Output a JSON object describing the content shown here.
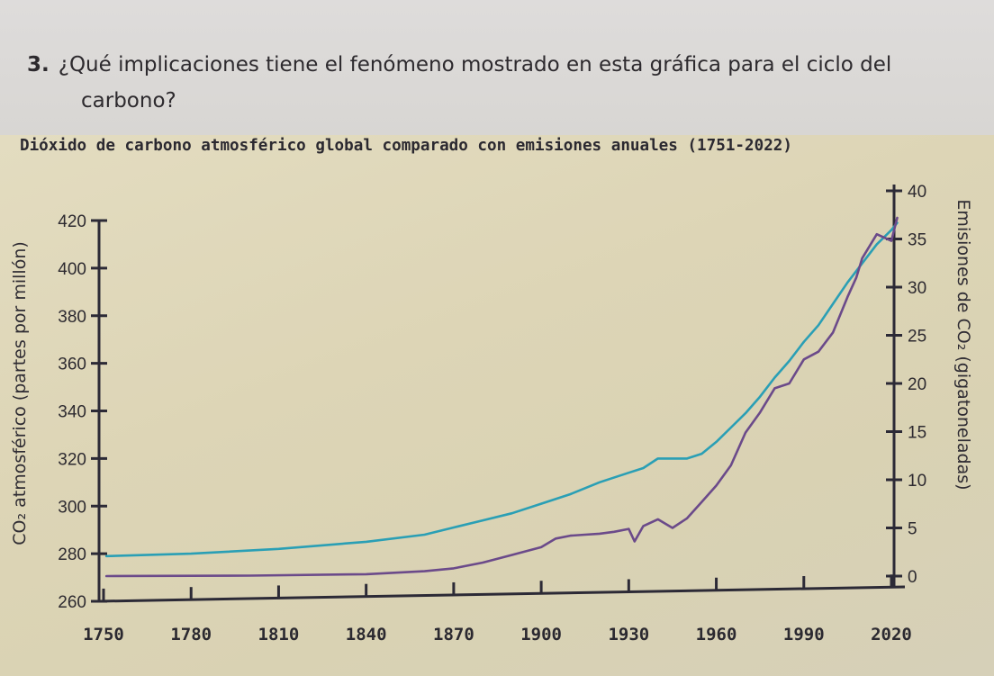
{
  "question": {
    "number": "3.",
    "line1": "¿Qué implicaciones tiene el fenómeno mostrado en esta gráfica para el ciclo del",
    "line2": "carbono?"
  },
  "chart_data": {
    "type": "line",
    "title": "Dióxido de carbono atmosférico global comparado con emisiones anuales (1751-2022)",
    "xlabel": "",
    "ylabel_left": "CO₂ atmosférico (partes por millón)",
    "ylabel_right": "Emisiones de CO₂ (gigatoneladas)",
    "x_ticks": [
      1750,
      1780,
      1810,
      1840,
      1870,
      1900,
      1930,
      1960,
      1990,
      2020
    ],
    "xlim": [
      1750,
      2022
    ],
    "y_left_ticks": [
      260,
      280,
      300,
      320,
      340,
      360,
      380,
      400,
      420
    ],
    "ylim_left": [
      260,
      420
    ],
    "y_right_ticks": [
      0,
      5,
      10,
      15,
      20,
      25,
      30,
      35,
      40
    ],
    "ylim_right": [
      0,
      40
    ],
    "grid": false,
    "legend": "none",
    "series": [
      {
        "axis": "left",
        "color": "#2a9fb5",
        "x": [
          1751,
          1780,
          1810,
          1840,
          1860,
          1870,
          1880,
          1890,
          1900,
          1910,
          1920,
          1930,
          1935,
          1940,
          1945,
          1950,
          1955,
          1960,
          1965,
          1970,
          1975,
          1980,
          1985,
          1990,
          1995,
          2000,
          2005,
          2010,
          2015,
          2020,
          2022
        ],
        "values": [
          279,
          280,
          282,
          285,
          288,
          291,
          294,
          297,
          301,
          305,
          310,
          314,
          316,
          320,
          320,
          320,
          322,
          327,
          333,
          339,
          346,
          354,
          361,
          369,
          376,
          385,
          394,
          402,
          410,
          416,
          419
        ]
      },
      {
        "axis": "right",
        "color": "#6b4a8a",
        "x": [
          1751,
          1800,
          1840,
          1860,
          1870,
          1880,
          1890,
          1900,
          1905,
          1910,
          1915,
          1920,
          1925,
          1930,
          1932,
          1935,
          1940,
          1945,
          1950,
          1955,
          1960,
          1965,
          1970,
          1975,
          1980,
          1985,
          1990,
          1995,
          2000,
          2005,
          2008,
          2010,
          2015,
          2020,
          2022
        ],
        "values": [
          0,
          0.05,
          0.2,
          0.5,
          0.8,
          1.4,
          2.2,
          3.0,
          3.9,
          4.2,
          4.3,
          4.4,
          4.6,
          4.9,
          3.6,
          5.2,
          5.9,
          5.0,
          6.0,
          7.7,
          9.4,
          11.5,
          14.9,
          17.0,
          19.5,
          20.0,
          22.5,
          23.3,
          25.3,
          29.0,
          31.0,
          33.0,
          35.5,
          34.8,
          37.2
        ]
      }
    ]
  }
}
